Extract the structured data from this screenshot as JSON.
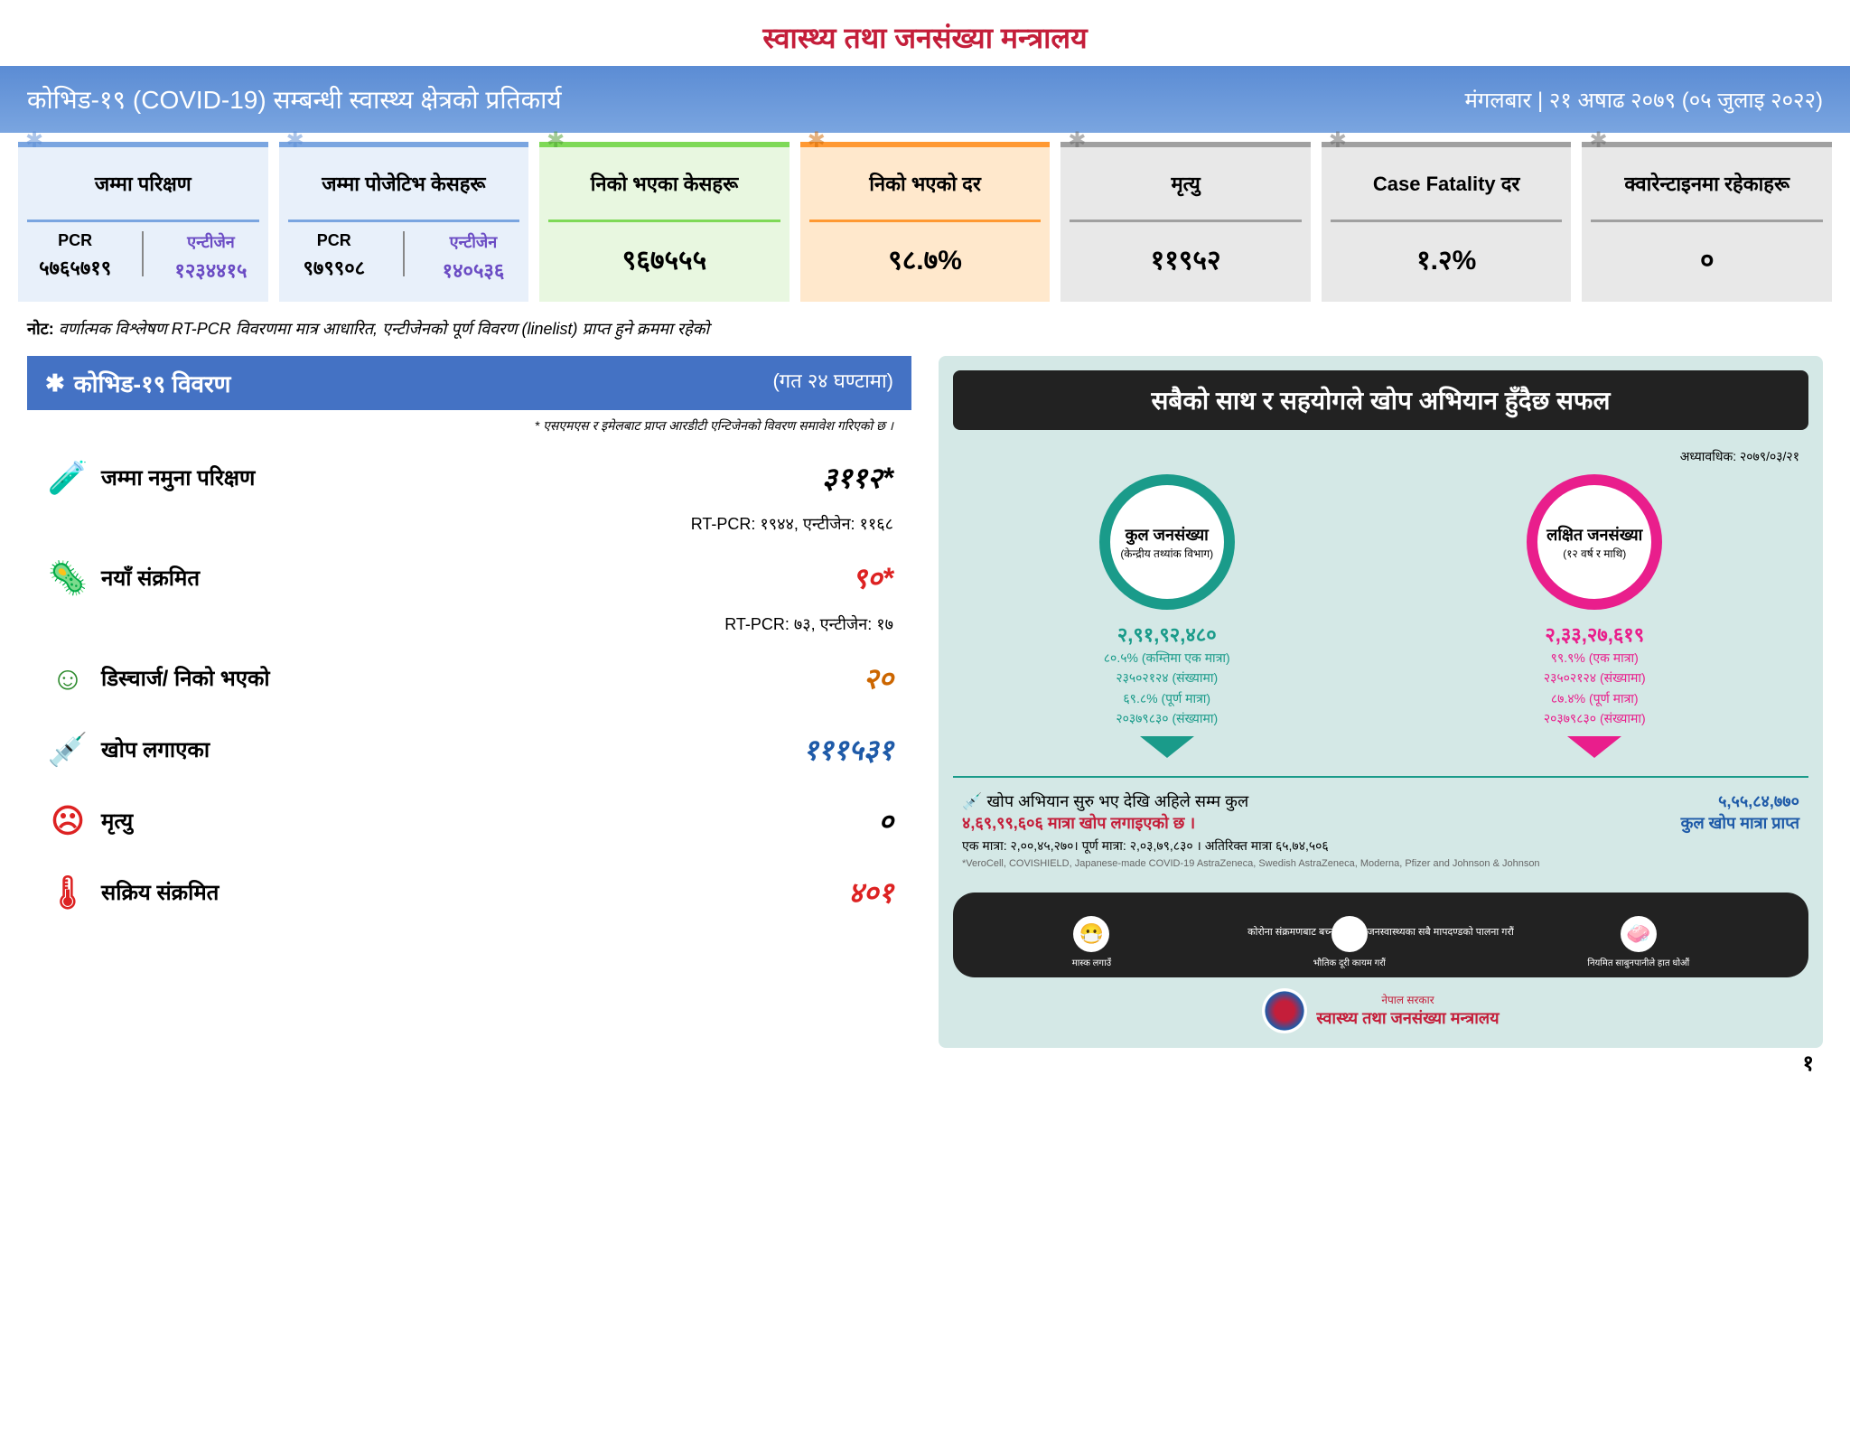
{
  "header": {
    "title": "स्वास्थ्य तथा जनसंख्या मन्त्रालय"
  },
  "banner": {
    "left": "कोभिड-१९ (COVID-19) सम्बन्धी स्वास्थ्य क्षेत्रको प्रतिकार्य",
    "right": "मंगलबार | २१ अषाढ २०७९ (०५ जुलाइ २०२२)"
  },
  "stats": [
    {
      "label": "जम्मा परिक्षण",
      "split": {
        "pcr_label": "PCR",
        "pcr_val": "५७६५७१९",
        "ant_label": "एन्टीजेन",
        "ant_val": "१२३४४१५"
      },
      "cls": "card-blue"
    },
    {
      "label": "जम्मा पोजेटिभ केसहरू",
      "split": {
        "pcr_label": "PCR",
        "pcr_val": "९७९९०८",
        "ant_label": "एन्टीजेन",
        "ant_val": "१४०५३६"
      },
      "cls": "card-blue"
    },
    {
      "label": "निको भएका केसहरू",
      "value": "९६७५५५",
      "cls": "card-green"
    },
    {
      "label": "निको भएको दर",
      "value": "९८.७%",
      "cls": "card-orange"
    },
    {
      "label": "मृत्यु",
      "value": "११९५२",
      "cls": "card-gray"
    },
    {
      "label": "Case Fatality दर",
      "value": "१.२%",
      "cls": "card-gray"
    },
    {
      "label": "क्वारेन्टाइनमा रहेकाहरू",
      "value": "०",
      "cls": "card-gray"
    }
  ],
  "note": {
    "prefix": "नोट:",
    "text": "वर्णात्मक विश्लेषण RT-PCR विवरणमा मात्र आधारित, एन्टीजेनको पूर्ण विवरण (linelist) प्राप्त हुने क्रममा रहेको"
  },
  "detail": {
    "header_left": "कोभिड-१९ विवरण",
    "header_right": "(गत २४ घण्टामा)",
    "subnote": "* एसएमएस र इमेलबाट प्राप्त आरडीटी एन्टिजेनको विवरण समावेश गरिएको छ ।",
    "rows": [
      {
        "icon": "🧪",
        "icon_color": "#1e5aa8",
        "label": "जम्मा नमुना परिक्षण",
        "value": "३११२*",
        "vcls": "val-black",
        "sub": "RT-PCR: १९४४, एन्टीजेन: ११६८"
      },
      {
        "icon": "🦠",
        "icon_color": "#d22",
        "label": "नयाँ संक्रमित",
        "value": "९०*",
        "vcls": "val-red",
        "sub": "RT-PCR: ७३,  एन्टीजेन: १७"
      },
      {
        "icon": "☺",
        "icon_color": "#2e8b2e",
        "label": "डिस्चार्ज/ निको भएको",
        "value": "२०",
        "vcls": "val-orange"
      },
      {
        "icon": "💉",
        "icon_color": "#1e5aa8",
        "label": "खोप लगाएका",
        "value": "१११५३१",
        "vcls": "val-blue"
      },
      {
        "icon": "☹",
        "icon_color": "#d22",
        "label": "मृत्यु",
        "value": "०",
        "vcls": "val-black"
      },
      {
        "icon": "🌡",
        "icon_color": "#d22",
        "label": "सक्रिय संक्रमित",
        "value": "४०१",
        "vcls": "val-red"
      }
    ]
  },
  "vaccine": {
    "title": "सबैको साथ र सहयोगले खोप अभियान हुँदैछ सफल",
    "date": "अध्यावधिक: २०७९/०३/२१",
    "circles": [
      {
        "cls": "circle-teal",
        "txt_cls": "circle-teal-txt",
        "main": "कुल जनसंख्या",
        "sub": "(केन्द्रीय तथ्यांक विभाग)",
        "num": "२,९१,९२,४८०",
        "stats": "८०.५% (कम्तिमा एक मात्रा)\n२३५०२१२४ (संख्यामा)\n६९.८% (पूर्ण मात्रा)\n२०३७९८३० (संख्यामा)",
        "arrow": "arrow-teal"
      },
      {
        "cls": "circle-pink",
        "txt_cls": "circle-pink-txt",
        "main": "लक्षित जनसंख्या",
        "sub": "(१२ वर्ष र माथि)",
        "num": "२,३३,२७,६१९",
        "stats": "९९.९% (एक मात्रा)\n२३५०२१२४ (संख्यामा)\n८७.४% (पूर्ण मात्रा)\n२०३७९८३० (संख्यामा)",
        "arrow": "arrow-pink"
      }
    ],
    "summary": {
      "icon": "💉",
      "line1": "खोप अभियान सुरु भए देखि अहिले सम्म कुल",
      "line2_red": "४,६९,९९,६०६ मात्रा खोप लगाइएको छ ।",
      "line3": "एक मात्रा: २,००,४५,२७०। पूर्ण मात्रा: २,०३,७९,८३० । अतिरिक्त मात्रा ६५,७४,५०६",
      "right_num": "५,५५,८४,७७०",
      "right_txt": "कुल खोप मात्रा प्राप्त",
      "footnote": "*VeroCell, COVISHIELD, Japanese-made COVID-19 AstraZeneca, Swedish AstraZeneca, Moderna, Pfizer and Johnson & Johnson"
    },
    "footer_title": "कोरोना संक्रमणबाट बच्नका लागि जनस्वास्थ्यका सबै मापदण्डको पालना गरौं",
    "footer_items": [
      {
        "icon": "😷",
        "txt": "मास्क लगाउँ"
      },
      {
        "icon": "↔",
        "txt": "भौतिक दूरी कायम गरौं"
      },
      {
        "icon": "🧼",
        "txt": "नियमित साबुनपानीले हात धोऔं"
      }
    ],
    "gov": {
      "sm": "नेपाल सरकार",
      "lg": "स्वास्थ्य तथा जनसंख्या मन्त्रालय"
    }
  },
  "page_num": "१"
}
